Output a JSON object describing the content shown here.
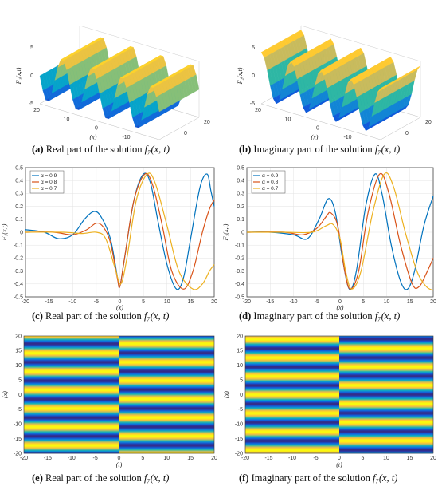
{
  "captions": {
    "a": {
      "tag": "(a)",
      "text": "Real part of the solution ",
      "math": "f₇(x, t)"
    },
    "b": {
      "tag": "(b)",
      "text": "Imaginary part of the solution ",
      "math": "f₇(x, t)"
    },
    "c": {
      "tag": "(c)",
      "text": "Real part of the solution ",
      "math": "f₇(x, t)"
    },
    "d": {
      "tag": "(d)",
      "text": "Imaginary part of the solution ",
      "math": "f₇(x, t)"
    },
    "e": {
      "tag": "(e)",
      "text": "Real part of the solution ",
      "math": "f₇(x, t)"
    },
    "f": {
      "tag": "(f)",
      "text": "Imaginary part of the solution ",
      "math": "f₇(x, t)"
    }
  },
  "colors": {
    "series": [
      "#0072bd",
      "#d95319",
      "#edb120"
    ],
    "parula": [
      "#352a87",
      "#0f5cdd",
      "#1481d6",
      "#06a4ca",
      "#2eb7a4",
      "#87bf77",
      "#d1bb59",
      "#fec832",
      "#f9fb0e"
    ]
  },
  "chart_data": [
    {
      "id": "a",
      "type": "surface3d",
      "zlabel": "F₁(x,t)",
      "xlabel": "(x)",
      "ylabel": "(t)",
      "zticks": [
        "5",
        "0",
        "-5"
      ],
      "xticks": [
        "20",
        "10",
        "0",
        "-10",
        "-20"
      ],
      "yticks": [
        "20",
        "0",
        "-20"
      ],
      "zlim": [
        -5,
        5
      ],
      "xlim": [
        -20,
        20
      ],
      "ylim": [
        -20,
        20
      ]
    },
    {
      "id": "b",
      "type": "surface3d",
      "zlabel": "F₂(x,t)",
      "xlabel": "(x)",
      "ylabel": "(t)",
      "zticks": [
        "5",
        "0",
        "-5"
      ],
      "xticks": [
        "20",
        "10",
        "0",
        "-10",
        "-20"
      ],
      "yticks": [
        "20",
        "0",
        "-20"
      ],
      "zlim": [
        -5,
        5
      ],
      "xlim": [
        -20,
        20
      ],
      "ylim": [
        -20,
        20
      ]
    },
    {
      "id": "c",
      "type": "line",
      "xlabel": "(x)",
      "ylabel": "F₁(x,t)",
      "xlim": [
        -20,
        20
      ],
      "ylim": [
        -0.5,
        0.5
      ],
      "xticks": [
        -20,
        -15,
        -10,
        -5,
        0,
        5,
        10,
        15,
        20
      ],
      "yticks": [
        0.5,
        0.4,
        0.3,
        0.2,
        0.1,
        0,
        -0.1,
        -0.2,
        -0.3,
        -0.4,
        -0.5
      ],
      "grid": true,
      "legend_position": "top-left",
      "series": [
        {
          "name": "α = 0.9",
          "points": [
            [
              -20,
              0.02
            ],
            [
              -16,
              0.0
            ],
            [
              -13,
              -0.05
            ],
            [
              -10,
              -0.02
            ],
            [
              -7.5,
              0.1
            ],
            [
              -5.5,
              0.16
            ],
            [
              -4,
              0.12
            ],
            [
              -2,
              -0.05
            ],
            [
              -0.5,
              -0.35
            ],
            [
              0,
              -0.42
            ],
            [
              1,
              -0.2
            ],
            [
              3,
              0.25
            ],
            [
              5,
              0.45
            ],
            [
              6.5,
              0.38
            ],
            [
              8,
              0.1
            ],
            [
              10,
              -0.25
            ],
            [
              12,
              -0.44
            ],
            [
              13.5,
              -0.35
            ],
            [
              15,
              -0.05
            ],
            [
              17,
              0.35
            ],
            [
              18.5,
              0.45
            ],
            [
              19.3,
              0.32
            ],
            [
              20,
              0.2
            ]
          ]
        },
        {
          "name": "α = 0.8",
          "points": [
            [
              -20,
              0.0
            ],
            [
              -14,
              0.0
            ],
            [
              -10,
              -0.02
            ],
            [
              -7,
              0.02
            ],
            [
              -5,
              0.07
            ],
            [
              -3.5,
              0.04
            ],
            [
              -2,
              -0.08
            ],
            [
              -0.5,
              -0.36
            ],
            [
              0,
              -0.42
            ],
            [
              1,
              -0.2
            ],
            [
              3,
              0.25
            ],
            [
              5.3,
              0.45
            ],
            [
              7,
              0.36
            ],
            [
              9,
              0.05
            ],
            [
              11,
              -0.3
            ],
            [
              13.5,
              -0.44
            ],
            [
              15.5,
              -0.3
            ],
            [
              17.5,
              0.0
            ],
            [
              19,
              0.18
            ],
            [
              20,
              0.25
            ]
          ]
        },
        {
          "name": "α = 0.7",
          "points": [
            [
              -20,
              0.0
            ],
            [
              -12,
              0.0
            ],
            [
              -8,
              -0.01
            ],
            [
              -5,
              0.0
            ],
            [
              -3,
              -0.05
            ],
            [
              -1,
              -0.28
            ],
            [
              0.2,
              -0.4
            ],
            [
              1.5,
              -0.2
            ],
            [
              3.5,
              0.25
            ],
            [
              5.8,
              0.45
            ],
            [
              7.5,
              0.38
            ],
            [
              10,
              0.05
            ],
            [
              12.5,
              -0.3
            ],
            [
              15.5,
              -0.44
            ],
            [
              17.5,
              -0.4
            ],
            [
              19,
              -0.3
            ],
            [
              20,
              -0.25
            ]
          ]
        }
      ]
    },
    {
      "id": "d",
      "type": "line",
      "xlabel": "(x)",
      "ylabel": "F₂(x,t)",
      "xlim": [
        -20,
        20
      ],
      "ylim": [
        -0.5,
        0.5
      ],
      "xticks": [
        -20,
        -15,
        -10,
        -5,
        0,
        5,
        10,
        15,
        20
      ],
      "yticks": [
        0.5,
        0.4,
        0.3,
        0.2,
        0.1,
        0,
        -0.1,
        -0.2,
        -0.3,
        -0.4,
        -0.5
      ],
      "grid": true,
      "legend_position": "top-left",
      "series": [
        {
          "name": "α = 0.9",
          "points": [
            [
              -20,
              0.0
            ],
            [
              -15,
              0.0
            ],
            [
              -10,
              -0.02
            ],
            [
              -7,
              -0.05
            ],
            [
              -4.5,
              0.1
            ],
            [
              -2.5,
              0.26
            ],
            [
              -1,
              0.15
            ],
            [
              0.5,
              -0.2
            ],
            [
              2,
              -0.44
            ],
            [
              3.5,
              -0.3
            ],
            [
              5.5,
              0.2
            ],
            [
              7.5,
              0.45
            ],
            [
              9,
              0.3
            ],
            [
              11,
              -0.1
            ],
            [
              13,
              -0.38
            ],
            [
              14.5,
              -0.44
            ],
            [
              16,
              -0.3
            ],
            [
              18,
              0.05
            ],
            [
              20,
              0.28
            ]
          ]
        },
        {
          "name": "α = 0.8",
          "points": [
            [
              -20,
              0.0
            ],
            [
              -12,
              0.0
            ],
            [
              -8,
              -0.02
            ],
            [
              -5,
              0.03
            ],
            [
              -3,
              0.12
            ],
            [
              -2,
              0.15
            ],
            [
              -0.5,
              0.05
            ],
            [
              1,
              -0.3
            ],
            [
              2.2,
              -0.44
            ],
            [
              4,
              -0.3
            ],
            [
              6,
              0.15
            ],
            [
              8.5,
              0.45
            ],
            [
              10.5,
              0.3
            ],
            [
              13,
              -0.1
            ],
            [
              15.5,
              -0.4
            ],
            [
              17,
              -0.42
            ],
            [
              18.5,
              -0.32
            ],
            [
              20,
              -0.2
            ]
          ]
        },
        {
          "name": "α = 0.7",
          "points": [
            [
              -20,
              0.0
            ],
            [
              -12,
              0.0
            ],
            [
              -6,
              0.0
            ],
            [
              -3,
              0.05
            ],
            [
              -1.5,
              0.06
            ],
            [
              0,
              -0.05
            ],
            [
              1.2,
              -0.3
            ],
            [
              2.5,
              -0.44
            ],
            [
              4.5,
              -0.3
            ],
            [
              7,
              0.15
            ],
            [
              9.5,
              0.45
            ],
            [
              11.5,
              0.35
            ],
            [
              14,
              0.0
            ],
            [
              16.5,
              -0.3
            ],
            [
              18.5,
              -0.42
            ],
            [
              20,
              -0.45
            ]
          ]
        }
      ]
    },
    {
      "id": "e",
      "type": "heatmap",
      "xlabel": "(t)",
      "ylabel": "(x)",
      "xlim": [
        -20,
        20
      ],
      "ylim": [
        -20,
        20
      ],
      "xticks": [
        -20,
        -15,
        -10,
        -5,
        0,
        5,
        10,
        15,
        20
      ],
      "yticks": [
        20,
        15,
        10,
        5,
        0,
        -5,
        -10,
        -15,
        -20
      ],
      "period": 6.3,
      "phase_left": 0.0,
      "phase_right": 3.1,
      "split_t": 0
    },
    {
      "id": "f",
      "type": "heatmap",
      "xlabel": "(t)",
      "ylabel": "(x)",
      "xlim": [
        -20,
        20
      ],
      "ylim": [
        -20,
        20
      ],
      "xticks": [
        -20,
        -15,
        -10,
        -5,
        0,
        5,
        10,
        15,
        20
      ],
      "yticks": [
        20,
        15,
        10,
        5,
        0,
        -5,
        -10,
        -15,
        -20
      ],
      "period": 6.3,
      "phase_left": 1.6,
      "phase_right": 4.7,
      "split_t": 0
    }
  ]
}
